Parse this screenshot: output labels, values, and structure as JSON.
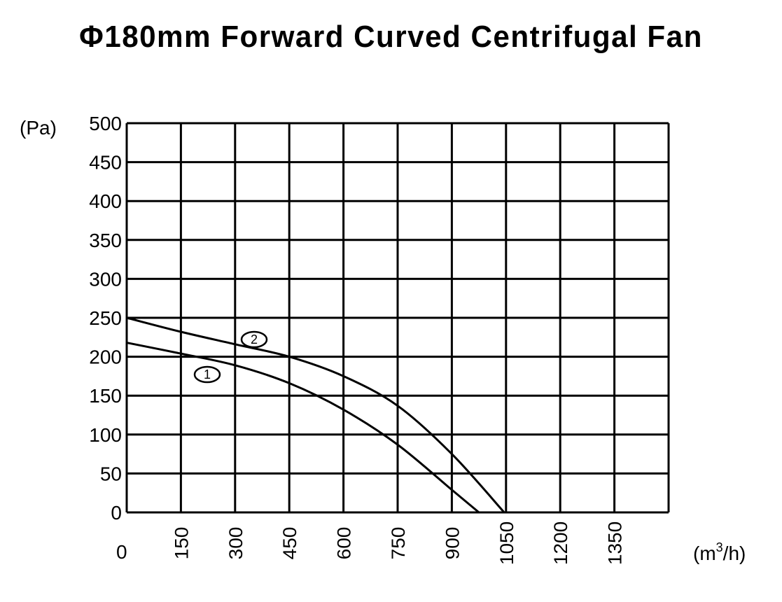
{
  "title": "Φ180mm Forward Curved Centrifugal Fan",
  "y_axis": {
    "unit": "(Pa)",
    "ticks": [
      "500",
      "450",
      "400",
      "350",
      "300",
      "250",
      "200",
      "150",
      "100",
      "50",
      "0"
    ]
  },
  "x_axis": {
    "unit_base": "(m",
    "unit_sup": "3",
    "unit_tail": "/h)",
    "origin": "0",
    "ticks": [
      "150",
      "300",
      "450",
      "600",
      "750",
      "900",
      "1050",
      "1200",
      "1350"
    ]
  },
  "curve_labels": {
    "c1": "1",
    "c2": "2"
  },
  "chart_data": {
    "type": "line",
    "title": "Φ180mm Forward Curved Centrifugal Fan",
    "xlabel": "(m³/h)",
    "ylabel": "(Pa)",
    "xlim": [
      0,
      1500
    ],
    "ylim": [
      0,
      500
    ],
    "x_ticks": [
      0,
      150,
      300,
      450,
      600,
      750,
      900,
      1050,
      1200,
      1350
    ],
    "y_ticks": [
      0,
      50,
      100,
      150,
      200,
      250,
      300,
      350,
      400,
      450,
      500
    ],
    "grid": true,
    "legend": "circled numbers on curves (1, 2)",
    "series": [
      {
        "name": "1",
        "x": [
          0,
          150,
          300,
          450,
          600,
          750,
          900,
          975
        ],
        "values": [
          218,
          204,
          189,
          166,
          132,
          87,
          29,
          0
        ]
      },
      {
        "name": "2",
        "x": [
          0,
          150,
          300,
          450,
          600,
          750,
          900,
          1045
        ],
        "values": [
          250,
          232,
          216,
          200,
          175,
          137,
          75,
          0
        ]
      }
    ]
  }
}
